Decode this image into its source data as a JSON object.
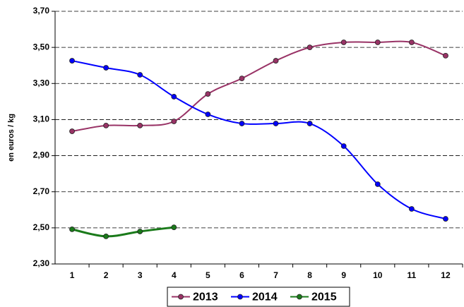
{
  "chart_data": {
    "type": "line",
    "y_label": "en euros / kg",
    "categories": [
      "1",
      "2",
      "3",
      "4",
      "5",
      "6",
      "7",
      "8",
      "9",
      "10",
      "11",
      "12"
    ],
    "series": [
      {
        "name": "2013",
        "color": "#993366",
        "values": [
          3.035,
          3.067,
          3.067,
          3.09,
          3.242,
          3.328,
          3.426,
          3.5,
          3.528,
          3.528,
          3.528,
          3.454
        ]
      },
      {
        "name": "2014",
        "color": "#0000ff",
        "values": [
          3.426,
          3.387,
          3.348,
          3.227,
          3.129,
          3.078,
          3.078,
          3.078,
          2.953,
          2.742,
          2.605,
          2.55
        ]
      },
      {
        "name": "2015",
        "color": "#1a7a1a",
        "values": [
          2.492,
          2.453,
          2.48,
          2.503,
          null,
          null,
          null,
          null,
          null,
          null,
          null,
          null
        ]
      }
    ],
    "ylim": [
      2.3,
      3.7
    ],
    "yticks": [
      {
        "value": 2.3,
        "label": "2,30"
      },
      {
        "value": 2.5,
        "label": "2,50"
      },
      {
        "value": 2.7,
        "label": "2,70"
      },
      {
        "value": 2.9,
        "label": "2,90"
      },
      {
        "value": 3.1,
        "label": "3,10"
      },
      {
        "value": 3.3,
        "label": "3,30"
      },
      {
        "value": 3.5,
        "label": "3,50"
      },
      {
        "value": 3.7,
        "label": "3,70"
      }
    ],
    "grid": true,
    "legend": "bottom"
  }
}
